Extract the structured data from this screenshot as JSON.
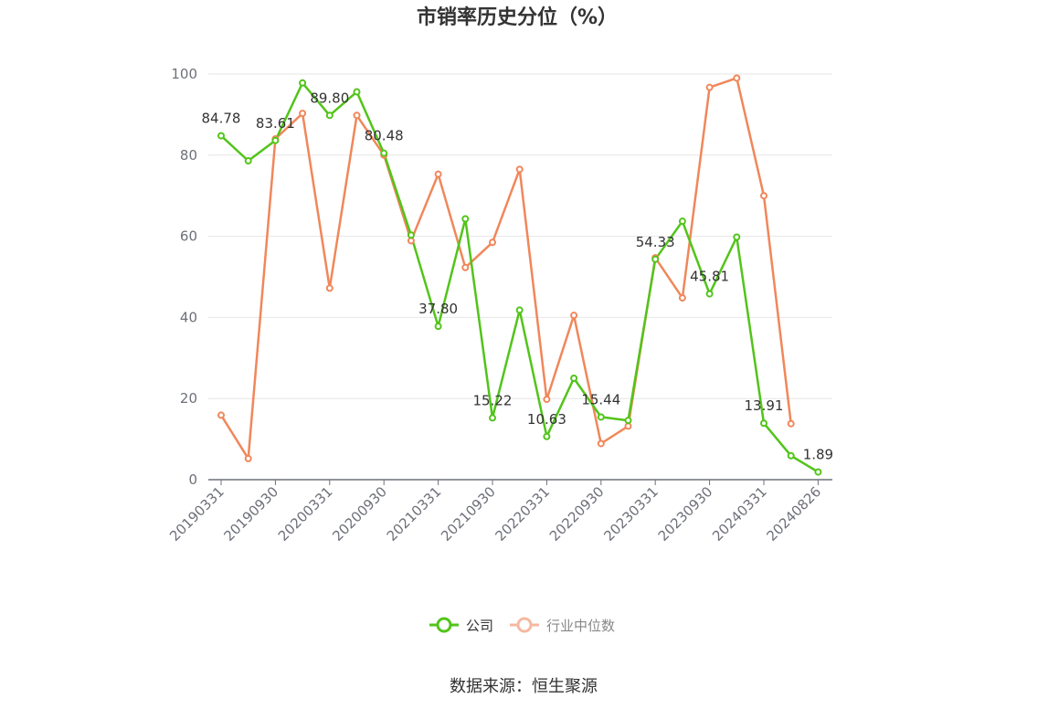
{
  "chart_data": {
    "type": "line",
    "title": "市销率历史分位（%）",
    "ylim": [
      0,
      100
    ],
    "yticks": [
      0,
      20,
      40,
      60,
      80,
      100
    ],
    "x_tick_labels": [
      "20190331",
      "20190930",
      "20200331",
      "20200930",
      "20210331",
      "20210930",
      "20220331",
      "20220930",
      "20230331",
      "20230930",
      "20240331",
      "20240826"
    ],
    "x": [
      "20190331",
      "20190630",
      "20190930",
      "20191231",
      "20200331",
      "20200630",
      "20200930",
      "20201231",
      "20210331",
      "20210630",
      "20210930",
      "20211231",
      "20220331",
      "20220630",
      "20220930",
      "20221231",
      "20230331",
      "20230630",
      "20230930",
      "20231231",
      "20240331",
      "20240630",
      "20240826"
    ],
    "series": [
      {
        "name": "公司",
        "color": "#52c41a",
        "values": [
          84.78,
          78.6,
          83.61,
          97.8,
          89.8,
          95.6,
          80.48,
          60.3,
          37.8,
          64.3,
          15.22,
          41.8,
          10.63,
          25.0,
          15.44,
          14.6,
          54.33,
          63.7,
          45.81,
          59.8,
          13.91,
          5.9,
          1.89
        ],
        "labels": {
          "0": "84.78",
          "2": "83.61",
          "4": "89.80",
          "6": "80.48",
          "8": "37.80",
          "10": "15.22",
          "12": "10.63",
          "14": "15.44",
          "16": "54.33",
          "18": "45.81",
          "20": "13.91",
          "22": "1.89"
        }
      },
      {
        "name": "行业中位数",
        "color": "#f0875a",
        "values": [
          15.9,
          5.2,
          84.0,
          90.3,
          47.2,
          89.8,
          80.0,
          58.9,
          75.3,
          52.3,
          58.5,
          76.5,
          19.8,
          40.5,
          8.9,
          13.2,
          54.7,
          44.8,
          96.7,
          99.0,
          70.0,
          13.8,
          null
        ]
      }
    ],
    "grid": true,
    "legend_position": "bottom-center"
  },
  "source_text": "数据来源：恒生聚源"
}
